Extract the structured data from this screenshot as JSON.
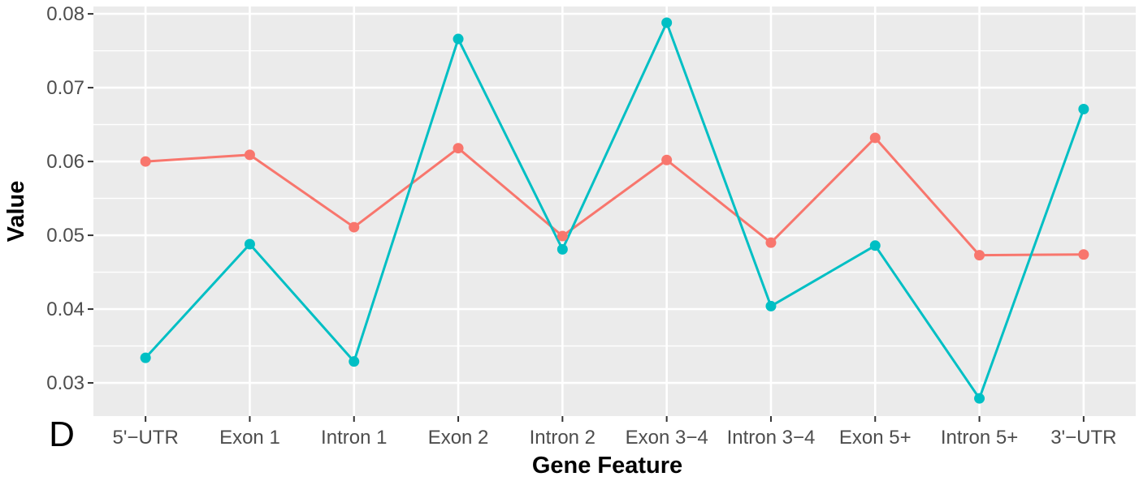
{
  "chart_data": {
    "type": "line",
    "title": "",
    "panel_label": "D",
    "xlabel": "Gene Feature",
    "ylabel": "Value",
    "categories": [
      "5'−UTR",
      "Exon 1",
      "Intron 1",
      "Exon 2",
      "Intron 2",
      "Exon 3−4",
      "Intron 3−4",
      "Exon 5+",
      "Intron 5+",
      "3'−UTR"
    ],
    "ylim": [
      0.0255,
      0.081
    ],
    "yticks": [
      0.03,
      0.04,
      0.05,
      0.06,
      0.07,
      0.08
    ],
    "ytick_labels": [
      "0.03",
      "0.04",
      "0.05",
      "0.06",
      "0.07",
      "0.08"
    ],
    "grid": true,
    "legend": "none",
    "series": [
      {
        "color": "#f8766d",
        "values": [
          0.06,
          0.0609,
          0.0511,
          0.0618,
          0.0499,
          0.0602,
          0.049,
          0.0632,
          0.0473,
          0.0474
        ]
      },
      {
        "color": "#00bfc4",
        "values": [
          0.0334,
          0.0488,
          0.0329,
          0.0766,
          0.0481,
          0.0788,
          0.0404,
          0.0486,
          0.0279,
          0.0671
        ]
      }
    ],
    "panel_background": "#ebebeb",
    "grid_color": "#ffffff"
  }
}
